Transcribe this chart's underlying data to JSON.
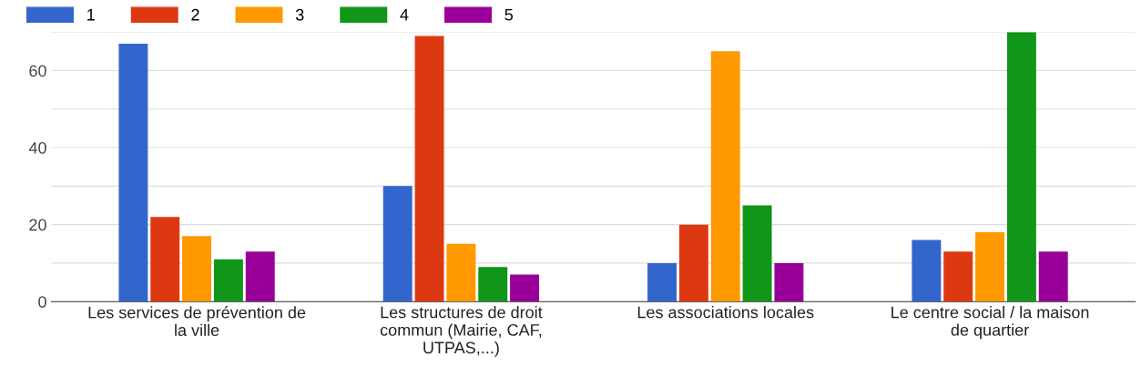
{
  "chart_data": {
    "type": "bar",
    "categories": [
      "Les services de prévention de\nla ville",
      "Les structures de droit\ncommun (Mairie, CAF,\nUTPAS,...)",
      "Les associations locales",
      "Le centre social / la maison\nde quartier"
    ],
    "series": [
      {
        "name": "1",
        "color": "#3366cc",
        "values": [
          67,
          30,
          10,
          16
        ]
      },
      {
        "name": "2",
        "color": "#dc3912",
        "values": [
          22,
          69,
          20,
          13
        ]
      },
      {
        "name": "3",
        "color": "#ff9900",
        "values": [
          17,
          15,
          65,
          18
        ]
      },
      {
        "name": "4",
        "color": "#109618",
        "values": [
          11,
          9,
          25,
          70
        ]
      },
      {
        "name": "5",
        "color": "#990099",
        "values": [
          13,
          7,
          10,
          13
        ]
      }
    ],
    "ylim": [
      0,
      70
    ],
    "yticks": [
      0,
      {
        "value": 10,
        "label": null
      },
      20,
      {
        "value": 30,
        "label": null
      },
      40,
      {
        "value": 50,
        "label": null
      },
      60,
      {
        "value": 70,
        "label": null
      }
    ],
    "grid": "y",
    "legend": "top left"
  }
}
